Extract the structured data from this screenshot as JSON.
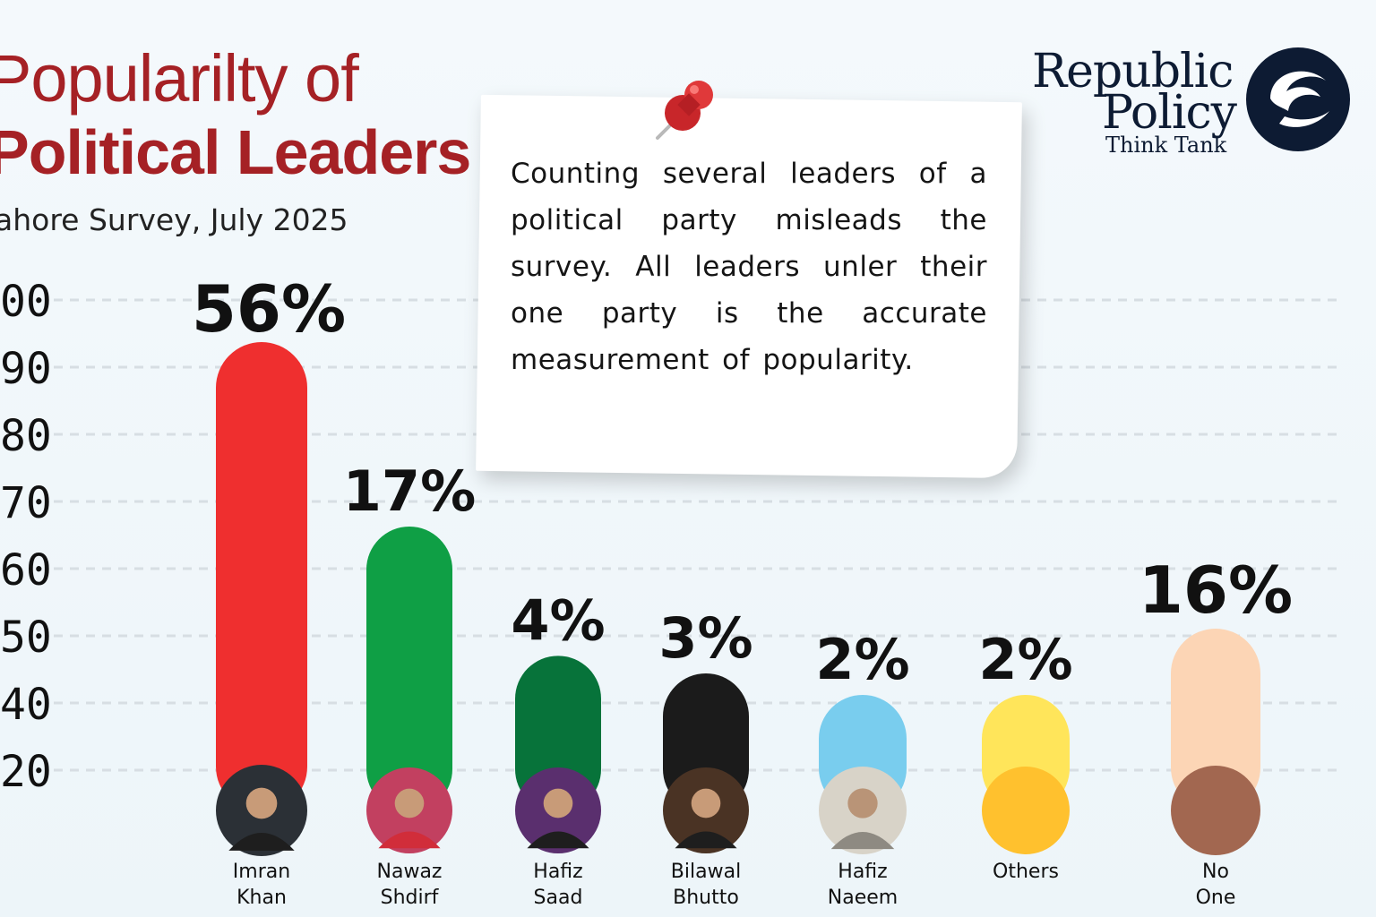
{
  "title": {
    "line1": "Popularilty of",
    "line2": "Political Leaders"
  },
  "subtitle": "ahore Survey, July 2025",
  "logo": {
    "line1": "Republic",
    "line2": "Policy",
    "line3": "Think Tank"
  },
  "note": {
    "text": "Counting several leaders of a political party misleads the survey. All leaders unler their one party is the accurate measurement of popularity."
  },
  "colors": {
    "title": "#a52125",
    "grid": "#d7dee3"
  },
  "chart_data": {
    "type": "bar",
    "title": "Popularilty of Political Leaders",
    "subtitle": "ahore Survey, July 2025",
    "y_ticks": [
      "00",
      "90",
      "80",
      "70",
      "60",
      "50",
      "40",
      "20"
    ],
    "grid": true,
    "categories": [
      {
        "line1": "Imran",
        "line2": "Khan"
      },
      {
        "line1": "Nawaz",
        "line2": "Shdirf"
      },
      {
        "line1": "Hafiz",
        "line2": "Saad"
      },
      {
        "line1": "Bilawal",
        "line2": "Bhutto"
      },
      {
        "line1": "Hafiz",
        "line2": "Naeem"
      },
      {
        "line1": "Others",
        "line2": ""
      },
      {
        "line1": "No",
        "line2": "One"
      }
    ],
    "values": [
      56,
      17,
      4,
      3,
      2,
      2,
      16
    ],
    "value_labels": [
      "56%",
      "17%",
      "4%",
      "3%",
      "2%",
      "2%",
      "16%"
    ],
    "bar_colors": [
      "#ef2f2f",
      "#0f9f45",
      "#07733a",
      "#1b1b1b",
      "#79cdee",
      "#ffe55a",
      "#fcd5b5"
    ],
    "avatar_colors": [
      "#2b3036",
      "#c24060",
      "#5a2f6e",
      "#4a3324",
      "#d8d3c8",
      "#ffc12e",
      "#a26750"
    ]
  }
}
